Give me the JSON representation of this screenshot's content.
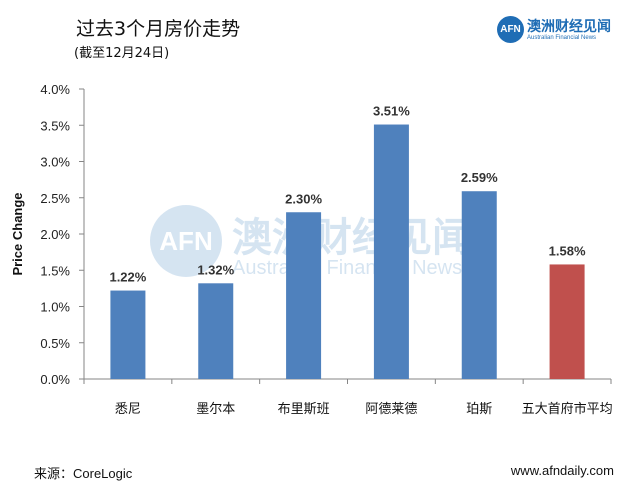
{
  "header": {
    "title": "过去3个月房价走势",
    "subtitle": "(截至12月24日)"
  },
  "logo": {
    "mark": "AFN",
    "name_cn": "澳洲财经见闻",
    "name_en": "Australian Financial News"
  },
  "footer": {
    "source": "来源：CoreLogic",
    "website": "www.afndaily.com"
  },
  "chart_data": {
    "type": "bar",
    "title": "过去3个月房价走势",
    "subtitle": "(截至12月24日)",
    "xlabel": "",
    "ylabel": "Price Change",
    "ylim": [
      0,
      4.0
    ],
    "yticks": [
      "0.0%",
      "0.5%",
      "1.0%",
      "1.5%",
      "2.0%",
      "2.5%",
      "3.0%",
      "3.5%",
      "4.0%"
    ],
    "grid": false,
    "categories": [
      "悉尼",
      "墨尔本",
      "布里斯班",
      "阿德莱德",
      "珀斯",
      "五大首府市平均"
    ],
    "values": [
      1.22,
      1.32,
      2.3,
      3.51,
      2.59,
      1.58
    ],
    "data_labels": [
      "1.22%",
      "1.32%",
      "2.30%",
      "3.51%",
      "2.59%",
      "1.58%"
    ],
    "colors": [
      "#4f81bd",
      "#4f81bd",
      "#4f81bd",
      "#4f81bd",
      "#4f81bd",
      "#c0504d"
    ]
  }
}
